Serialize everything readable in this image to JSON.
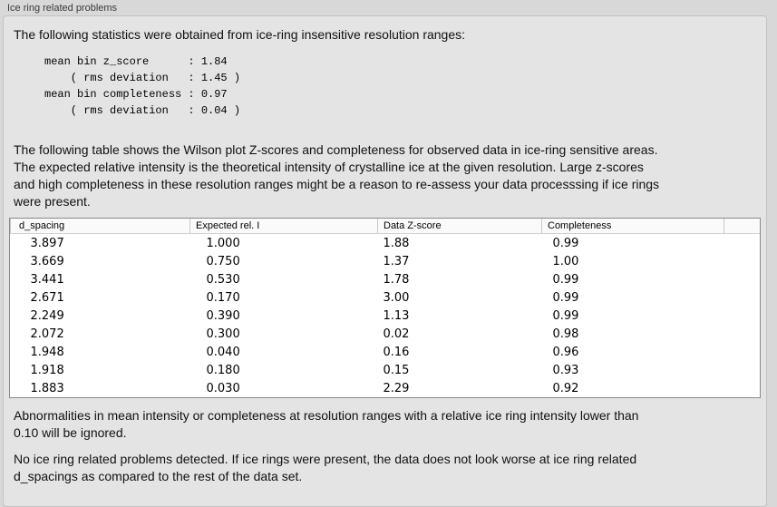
{
  "panel": {
    "title": "Ice ring related problems",
    "intro": "The following statistics were obtained from ice-ring insensitive resolution ranges:",
    "stats_block": "mean bin z_score      : 1.84\n    ( rms deviation   : 1.45 )\nmean bin completeness : 0.97\n    ( rms deviation   : 0.04 )",
    "description": "The following table shows the Wilson plot Z-scores and completeness for observed data in ice-ring sensitive areas.\nThe expected relative intensity is the theoretical intensity of crystalline ice at the given resolution. Large z-scores\nand high completeness in these resolution ranges might be a reason to re-assess your data processsing if ice rings\nwere present.",
    "note_ignore": "Abnormalities in mean intensity or completeness at resolution ranges with a relative ice ring intensity lower than\n0.10 will be ignored.",
    "conclusion": "No ice ring related problems detected. If ice rings were present, the data does not look worse at ice ring related\nd_spacings as compared to the rest of the data set."
  },
  "stats": {
    "mean_bin_z_score": "1.84",
    "mean_bin_z_score_rms_deviation": "1.45",
    "mean_bin_completeness": "0.97",
    "mean_bin_completeness_rms_deviation": "0.04"
  },
  "table": {
    "columns": [
      "d_spacing",
      "Expected rel. I",
      "Data Z-score",
      "Completeness"
    ],
    "rows": [
      [
        "3.897",
        "1.000",
        "1.88",
        "0.99"
      ],
      [
        "3.669",
        "0.750",
        "1.37",
        "1.00"
      ],
      [
        "3.441",
        "0.530",
        "1.78",
        "0.99"
      ],
      [
        "2.671",
        "0.170",
        "3.00",
        "0.99"
      ],
      [
        "2.249",
        "0.390",
        "1.13",
        "0.99"
      ],
      [
        "2.072",
        "0.300",
        "0.02",
        "0.98"
      ],
      [
        "1.948",
        "0.040",
        "0.16",
        "0.96"
      ],
      [
        "1.918",
        "0.180",
        "0.15",
        "0.93"
      ],
      [
        "1.883",
        "0.030",
        "2.29",
        "0.92"
      ]
    ]
  },
  "colors": {
    "window_background": "#d8d8d8",
    "groupbox_background": "#e4e4e4",
    "table_background": "#ffffff"
  }
}
